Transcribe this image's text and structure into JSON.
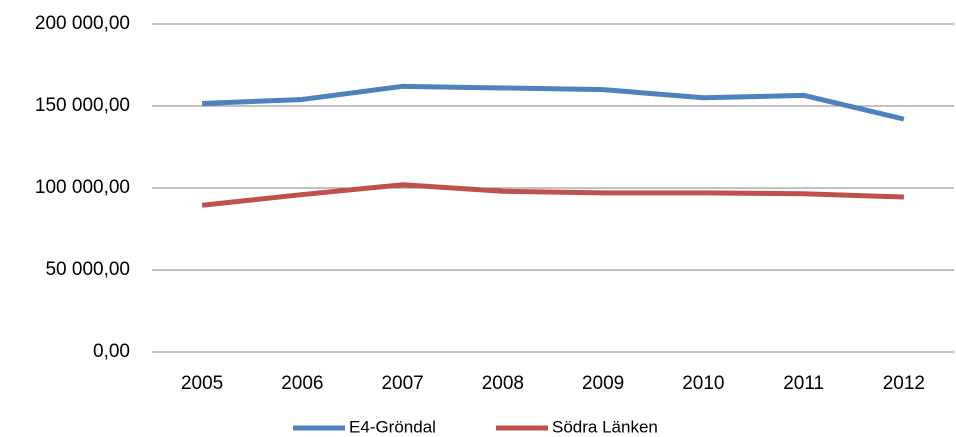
{
  "chart_data": {
    "type": "line",
    "categories": [
      "2005",
      "2006",
      "2007",
      "2008",
      "2009",
      "2010",
      "2011",
      "2012"
    ],
    "series": [
      {
        "name": "E4-Gröndal",
        "color": "#4f81bd",
        "values": [
          151500,
          154000,
          162000,
          161000,
          160000,
          155000,
          156500,
          142000
        ]
      },
      {
        "name": "Södra Länken",
        "color": "#c0504d",
        "values": [
          89500,
          96000,
          102000,
          98000,
          97000,
          97000,
          96500,
          94500
        ]
      }
    ],
    "ylim": [
      0,
      200000
    ],
    "yticks": [
      {
        "value": 0,
        "label": "0,00"
      },
      {
        "value": 50000,
        "label": "50 000,00"
      },
      {
        "value": 100000,
        "label": "100 000,00"
      },
      {
        "value": 150000,
        "label": "150 000,00"
      },
      {
        "value": 200000,
        "label": "200 000,00"
      }
    ],
    "grid": true,
    "legend": "bottom"
  }
}
